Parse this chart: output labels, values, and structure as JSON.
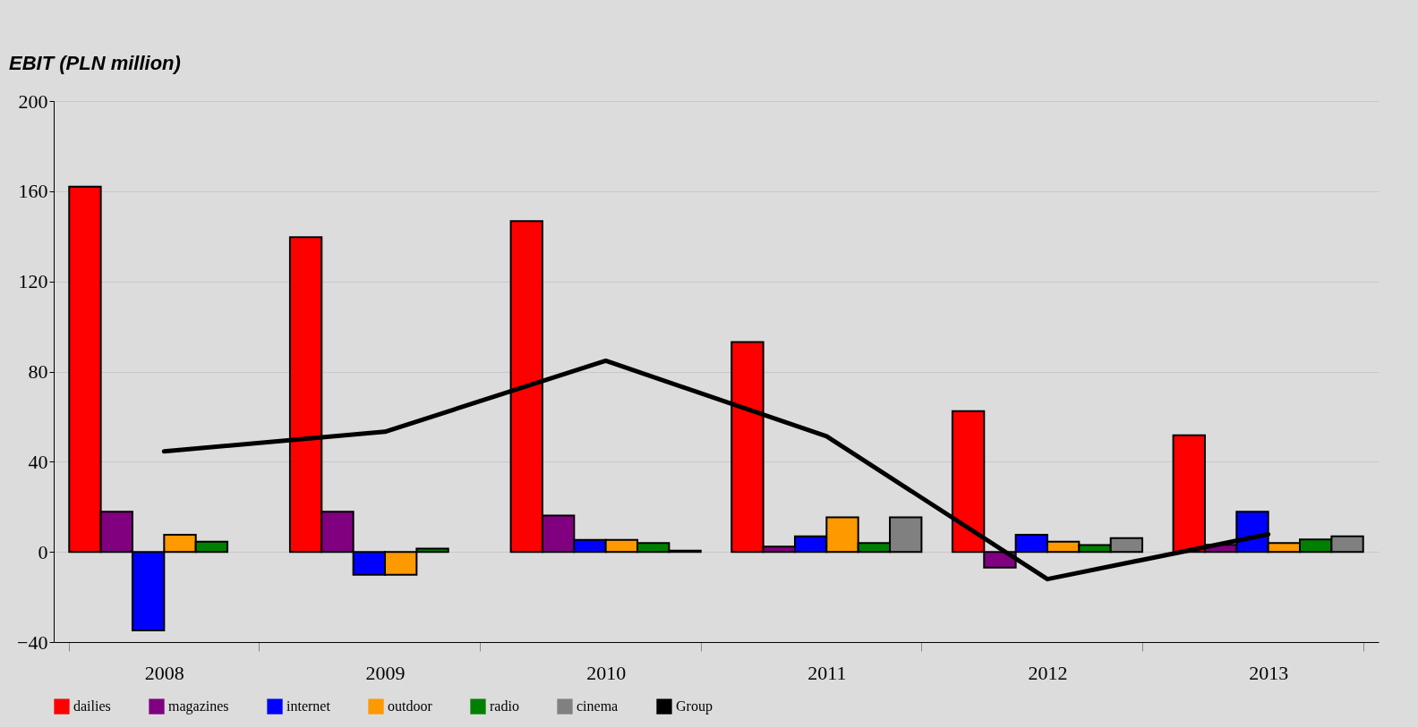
{
  "chart_data": {
    "type": "bar",
    "title": "EBIT (PLN million)",
    "categories": [
      "2008",
      "2009",
      "2010",
      "2011",
      "2012",
      "2013"
    ],
    "series": [
      {
        "name": "dailies",
        "color": "#ff0000",
        "values": [
          162,
          139.6,
          146.7,
          93.1,
          62.4,
          51.7
        ]
      },
      {
        "name": "magazines",
        "color": "#800080",
        "values": [
          17.8,
          17.8,
          16.1,
          2.3,
          -7.0,
          3.1
        ]
      },
      {
        "name": "internet",
        "color": "#0000ff",
        "values": [
          -34.8,
          -10.1,
          5.3,
          6.9,
          7.6,
          17.8
        ]
      },
      {
        "name": "outdoor",
        "color": "#ff9900",
        "values": [
          7.6,
          -10.1,
          5.3,
          15.3,
          4.5,
          3.9
        ]
      },
      {
        "name": "radio",
        "color": "#008000",
        "values": [
          4.5,
          1.5,
          3.9,
          3.9,
          3.0,
          5.5
        ]
      },
      {
        "name": "cinema",
        "color": "#808080",
        "values": [
          null,
          null,
          0.6,
          15.3,
          6.1,
          6.9
        ]
      },
      {
        "name": "Group",
        "type": "line",
        "color": "#000000",
        "values": [
          44.6,
          53.3,
          84.8,
          51.3,
          -12.1,
          7.8
        ]
      }
    ],
    "ylim": [
      -40,
      200
    ],
    "yticks": [
      -40,
      0,
      40,
      80,
      120,
      160,
      200
    ],
    "grid": "y",
    "legend": "bottom"
  }
}
